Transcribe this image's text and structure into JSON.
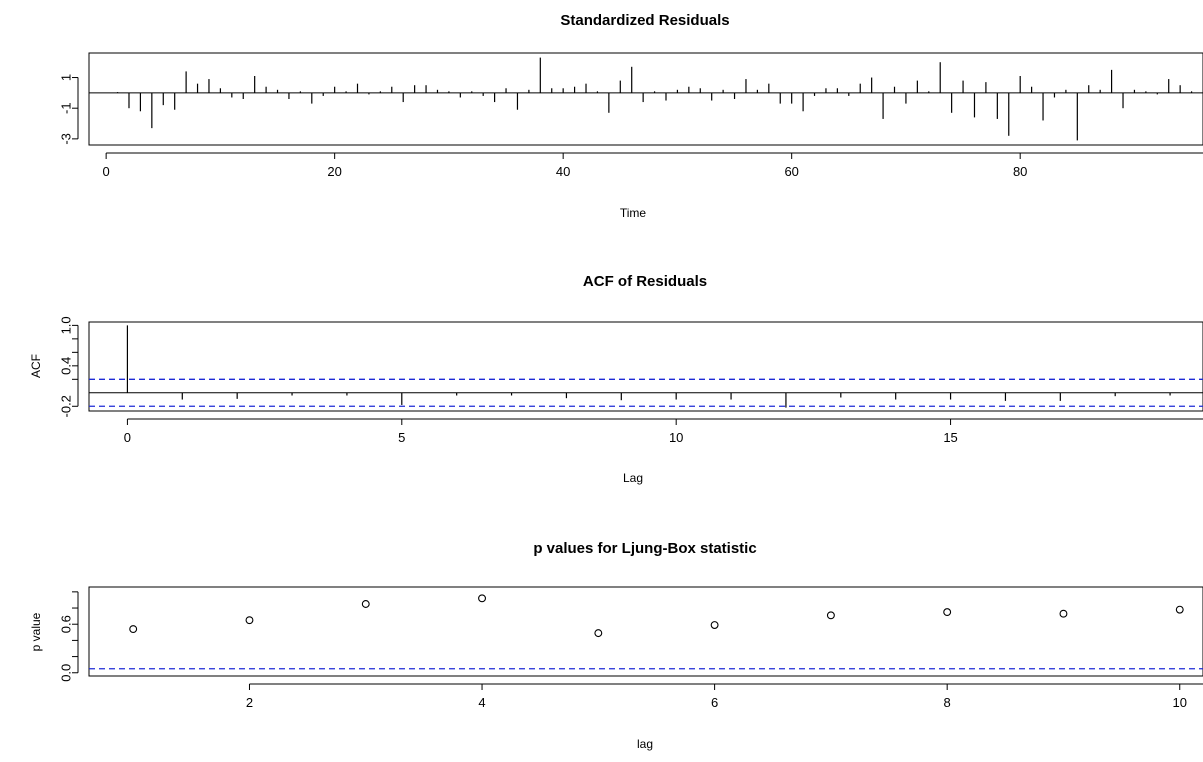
{
  "chart_data": [
    {
      "type": "spike",
      "title": "Standardized Residuals",
      "xlabel": "Time",
      "ylabel": "",
      "xlim": [
        -1.5,
        96
      ],
      "ylim": [
        -3.4,
        2.6
      ],
      "x_ticks": [
        0,
        20,
        40,
        60,
        80
      ],
      "y_ticks": [
        1,
        -1,
        -3
      ],
      "x_tick_labels": [
        "0",
        "20",
        "40",
        "60",
        "80"
      ],
      "y_tick_labels": [
        "1",
        "-1",
        "-3"
      ],
      "reference_line": 0,
      "x": [
        1,
        2,
        3,
        4,
        5,
        6,
        7,
        8,
        9,
        10,
        11,
        12,
        13,
        14,
        15,
        16,
        17,
        18,
        19,
        20,
        21,
        22,
        23,
        24,
        25,
        26,
        27,
        28,
        29,
        30,
        31,
        32,
        33,
        34,
        35,
        36,
        37,
        38,
        39,
        40,
        41,
        42,
        43,
        44,
        45,
        46,
        47,
        48,
        49,
        50,
        51,
        52,
        53,
        54,
        55,
        56,
        57,
        58,
        59,
        60,
        61,
        62,
        63,
        64,
        65,
        66,
        67,
        68,
        69,
        70,
        71,
        72,
        73,
        74,
        75,
        76,
        77,
        78,
        79,
        80,
        81,
        82,
        83,
        84,
        85,
        86,
        87,
        88,
        89,
        90,
        91,
        92,
        93,
        94,
        95
      ],
      "values": [
        0.05,
        -1.0,
        -1.2,
        -2.3,
        -0.8,
        -1.1,
        1.4,
        0.6,
        0.9,
        0.3,
        -0.3,
        -0.4,
        1.1,
        0.4,
        0.2,
        -0.4,
        0.1,
        -0.7,
        -0.2,
        0.4,
        0.1,
        0.6,
        -0.1,
        0.1,
        0.4,
        -0.6,
        0.5,
        0.5,
        0.2,
        0.1,
        -0.3,
        0.1,
        -0.2,
        -0.6,
        0.3,
        -1.1,
        0.2,
        2.3,
        0.3,
        0.3,
        0.4,
        0.6,
        0.1,
        -1.3,
        0.8,
        1.7,
        -0.6,
        0.1,
        -0.5,
        0.2,
        0.4,
        0.3,
        -0.5,
        0.2,
        -0.4,
        0.9,
        0.2,
        0.6,
        -0.7,
        -0.7,
        -1.2,
        -0.2,
        0.3,
        0.3,
        -0.2,
        0.6,
        1.0,
        -1.7,
        0.4,
        -0.7,
        0.8,
        0.1,
        2.0,
        -1.3,
        0.8,
        -1.6,
        0.7,
        -1.7,
        -2.8,
        1.1,
        0.4,
        -1.8,
        -0.3,
        0.2,
        -3.1,
        0.5,
        0.2,
        1.5,
        -1.0,
        0.2,
        0.1,
        -0.1,
        0.9,
        0.5,
        0.1
      ]
    },
    {
      "type": "spike",
      "title": "ACF of Residuals",
      "xlabel": "Lag",
      "ylabel": "ACF",
      "xlim": [
        -0.7,
        19.6
      ],
      "ylim": [
        -0.27,
        1.05
      ],
      "x_ticks": [
        0,
        5,
        10,
        15
      ],
      "y_ticks": [
        -0.2,
        0.4,
        1.0
      ],
      "x_tick_labels": [
        "0",
        "5",
        "10",
        "15"
      ],
      "y_tick_labels": [
        "-0.2",
        "0.4",
        "1.0"
      ],
      "y_ticks_unlabeled": [
        0.2,
        0.6,
        0.8
      ],
      "confidence_band": [
        -0.2,
        0.2
      ],
      "reference_line": 0,
      "x": [
        0,
        1,
        2,
        3,
        4,
        5,
        6,
        7,
        8,
        9,
        10,
        11,
        12,
        13,
        14,
        15,
        16,
        17,
        18,
        19
      ],
      "values": [
        1.0,
        -0.1,
        -0.09,
        -0.04,
        -0.04,
        -0.18,
        -0.04,
        -0.04,
        -0.08,
        -0.11,
        -0.1,
        -0.1,
        -0.22,
        -0.07,
        -0.1,
        -0.1,
        -0.12,
        -0.12,
        -0.05,
        -0.04
      ]
    },
    {
      "type": "scatter",
      "title": "p values for Ljung-Box statistic",
      "xlabel": "lag",
      "ylabel": "p value",
      "xlim": [
        0.62,
        10.2
      ],
      "ylim": [
        -0.04,
        1.06
      ],
      "x_ticks": [
        2,
        4,
        6,
        8,
        10
      ],
      "y_ticks": [
        0.0,
        0.6
      ],
      "x_tick_labels": [
        "2",
        "4",
        "6",
        "8",
        "10"
      ],
      "y_tick_labels": [
        "0.0",
        "0.6"
      ],
      "y_ticks_unlabeled": [
        0.2,
        0.4,
        0.8,
        1.0
      ],
      "significance_line": 0.05,
      "x": [
        1,
        2,
        3,
        4,
        5,
        6,
        7,
        8,
        9,
        10
      ],
      "values": [
        0.54,
        0.65,
        0.85,
        0.92,
        0.49,
        0.59,
        0.71,
        0.75,
        0.73,
        0.78
      ]
    }
  ]
}
